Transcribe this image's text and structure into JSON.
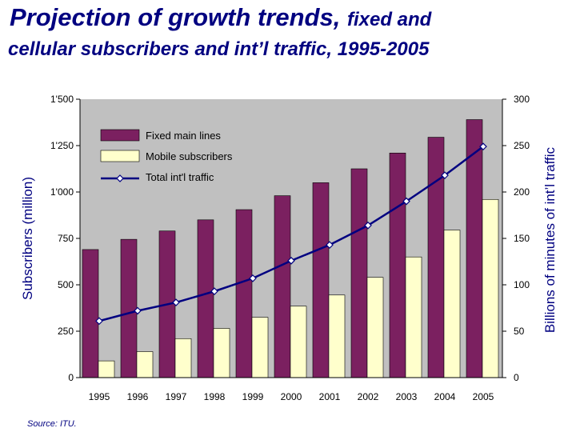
{
  "title": {
    "main": "Projection of growth trends,",
    "sub_inline": "fixed and",
    "line2": "cellular subscribers and int’l traffic, 1995-2005"
  },
  "source": "Source:  ITU.",
  "colors": {
    "fixed": "#7B2060",
    "mobile": "#FFFFCC",
    "line": "#000080",
    "plot_bg": "#C0C0C0",
    "title": "#000080"
  },
  "chart_data": {
    "type": "bar",
    "categories": [
      "1995",
      "1996",
      "1997",
      "1998",
      "1999",
      "2000",
      "2001",
      "2002",
      "2003",
      "2004",
      "2005"
    ],
    "series": [
      {
        "name": "Fixed main lines",
        "type": "bar",
        "axis": "left",
        "values": [
          690,
          745,
          790,
          850,
          905,
          980,
          1050,
          1125,
          1210,
          1295,
          1390
        ]
      },
      {
        "name": "Mobile subscribers",
        "type": "bar",
        "axis": "left",
        "values": [
          90,
          140,
          210,
          265,
          325,
          385,
          445,
          540,
          650,
          795,
          960
        ]
      },
      {
        "name": "Total int'l traffic",
        "type": "line",
        "axis": "right",
        "values": [
          61,
          72,
          81,
          93,
          107,
          126,
          143,
          164,
          190,
          218,
          249
        ]
      }
    ],
    "ylabel": "Subscribers (million)",
    "y2label": "Billions of minutes of int’l traffic",
    "ylim": [
      0,
      1500
    ],
    "y2lim": [
      0,
      300
    ],
    "yticks": [
      "0",
      "250",
      "500",
      "750",
      "1'000",
      "1'250",
      "1'500"
    ],
    "y2ticks": [
      "0",
      "50",
      "100",
      "150",
      "200",
      "250",
      "300"
    ],
    "legend": [
      "Fixed main lines",
      "Mobile subscribers",
      "Total int'l traffic"
    ],
    "legend_position": "top-left"
  }
}
